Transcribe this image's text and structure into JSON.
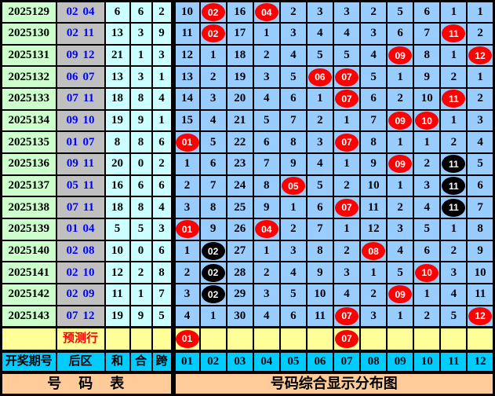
{
  "colors": {
    "period_bg": "#ccffcc",
    "back_bg": "#c0c0c0",
    "back_text": "#0000ff",
    "stat_bg": "#ccffff",
    "grid_bg": "#99ccff",
    "prediction_bg": "#ffff99",
    "prediction_text": "#ff0000",
    "header_bg": "#00ccff",
    "footer_bg": "#ffcc99",
    "circle_red": "#ff0000",
    "circle_black": "#000000",
    "grid_line": "#000000"
  },
  "chart_data": {
    "type": "table",
    "header": {
      "period": "开奖期号",
      "back": "后区",
      "sum": "和",
      "he": "合",
      "span": "跨",
      "numbers": [
        "01",
        "02",
        "03",
        "04",
        "05",
        "06",
        "07",
        "08",
        "09",
        "10",
        "11",
        "12"
      ]
    },
    "rows": [
      {
        "period": "2025129",
        "back": [
          "02",
          "04"
        ],
        "sum": "6",
        "he": "6",
        "span": "2",
        "cells": [
          {
            "v": "10"
          },
          {
            "v": "02",
            "m": "red"
          },
          {
            "v": "16"
          },
          {
            "v": "04",
            "m": "red"
          },
          {
            "v": "2"
          },
          {
            "v": "3"
          },
          {
            "v": "3"
          },
          {
            "v": "2"
          },
          {
            "v": "5"
          },
          {
            "v": "6"
          },
          {
            "v": "1"
          },
          {
            "v": "1"
          }
        ]
      },
      {
        "period": "2025130",
        "back": [
          "02",
          "11"
        ],
        "sum": "13",
        "he": "3",
        "span": "9",
        "cells": [
          {
            "v": "11"
          },
          {
            "v": "02",
            "m": "red"
          },
          {
            "v": "17"
          },
          {
            "v": "1"
          },
          {
            "v": "3"
          },
          {
            "v": "4"
          },
          {
            "v": "4"
          },
          {
            "v": "3"
          },
          {
            "v": "6"
          },
          {
            "v": "7"
          },
          {
            "v": "11",
            "m": "red"
          },
          {
            "v": "2"
          }
        ]
      },
      {
        "period": "2025131",
        "back": [
          "09",
          "12"
        ],
        "sum": "21",
        "he": "1",
        "span": "3",
        "cells": [
          {
            "v": "12"
          },
          {
            "v": "1"
          },
          {
            "v": "18"
          },
          {
            "v": "2"
          },
          {
            "v": "4"
          },
          {
            "v": "5"
          },
          {
            "v": "5"
          },
          {
            "v": "4"
          },
          {
            "v": "09",
            "m": "red"
          },
          {
            "v": "8"
          },
          {
            "v": "1"
          },
          {
            "v": "12",
            "m": "red"
          }
        ]
      },
      {
        "period": "2025132",
        "back": [
          "06",
          "07"
        ],
        "sum": "13",
        "he": "3",
        "span": "1",
        "cells": [
          {
            "v": "13"
          },
          {
            "v": "2"
          },
          {
            "v": "19"
          },
          {
            "v": "3"
          },
          {
            "v": "5"
          },
          {
            "v": "06",
            "m": "red"
          },
          {
            "v": "07",
            "m": "red"
          },
          {
            "v": "5"
          },
          {
            "v": "1"
          },
          {
            "v": "9"
          },
          {
            "v": "2"
          },
          {
            "v": "1"
          }
        ]
      },
      {
        "period": "2025133",
        "back": [
          "07",
          "11"
        ],
        "sum": "18",
        "he": "8",
        "span": "4",
        "cells": [
          {
            "v": "14"
          },
          {
            "v": "3"
          },
          {
            "v": "20"
          },
          {
            "v": "4"
          },
          {
            "v": "6"
          },
          {
            "v": "1"
          },
          {
            "v": "07",
            "m": "red"
          },
          {
            "v": "6"
          },
          {
            "v": "2"
          },
          {
            "v": "10"
          },
          {
            "v": "11",
            "m": "red"
          },
          {
            "v": "2"
          }
        ]
      },
      {
        "period": "2025134",
        "back": [
          "09",
          "10"
        ],
        "sum": "19",
        "he": "9",
        "span": "1",
        "cells": [
          {
            "v": "15"
          },
          {
            "v": "4"
          },
          {
            "v": "21"
          },
          {
            "v": "5"
          },
          {
            "v": "7"
          },
          {
            "v": "2"
          },
          {
            "v": "1"
          },
          {
            "v": "7"
          },
          {
            "v": "09",
            "m": "red"
          },
          {
            "v": "10",
            "m": "red"
          },
          {
            "v": "1"
          },
          {
            "v": "3"
          }
        ]
      },
      {
        "period": "2025135",
        "back": [
          "01",
          "07"
        ],
        "sum": "8",
        "he": "8",
        "span": "6",
        "cells": [
          {
            "v": "01",
            "m": "red"
          },
          {
            "v": "5"
          },
          {
            "v": "22"
          },
          {
            "v": "6"
          },
          {
            "v": "8"
          },
          {
            "v": "3"
          },
          {
            "v": "07",
            "m": "red"
          },
          {
            "v": "8"
          },
          {
            "v": "1"
          },
          {
            "v": "1"
          },
          {
            "v": "2"
          },
          {
            "v": "4"
          }
        ]
      },
      {
        "period": "2025136",
        "back": [
          "09",
          "11"
        ],
        "sum": "20",
        "he": "0",
        "span": "2",
        "cells": [
          {
            "v": "1"
          },
          {
            "v": "6"
          },
          {
            "v": "23"
          },
          {
            "v": "7"
          },
          {
            "v": "9"
          },
          {
            "v": "4"
          },
          {
            "v": "1"
          },
          {
            "v": "9"
          },
          {
            "v": "09",
            "m": "red"
          },
          {
            "v": "2"
          },
          {
            "v": "11",
            "m": "black"
          },
          {
            "v": "5"
          }
        ]
      },
      {
        "period": "2025137",
        "back": [
          "05",
          "11"
        ],
        "sum": "16",
        "he": "6",
        "span": "6",
        "cells": [
          {
            "v": "2"
          },
          {
            "v": "7"
          },
          {
            "v": "24"
          },
          {
            "v": "8"
          },
          {
            "v": "05",
            "m": "red"
          },
          {
            "v": "5"
          },
          {
            "v": "2"
          },
          {
            "v": "10"
          },
          {
            "v": "1"
          },
          {
            "v": "3"
          },
          {
            "v": "11",
            "m": "black"
          },
          {
            "v": "6"
          }
        ]
      },
      {
        "period": "2025138",
        "back": [
          "07",
          "11"
        ],
        "sum": "18",
        "he": "8",
        "span": "4",
        "cells": [
          {
            "v": "3"
          },
          {
            "v": "8"
          },
          {
            "v": "25"
          },
          {
            "v": "9"
          },
          {
            "v": "1"
          },
          {
            "v": "6"
          },
          {
            "v": "07",
            "m": "red"
          },
          {
            "v": "11"
          },
          {
            "v": "2"
          },
          {
            "v": "4"
          },
          {
            "v": "11",
            "m": "black"
          },
          {
            "v": "7"
          }
        ]
      },
      {
        "period": "2025139",
        "back": [
          "01",
          "04"
        ],
        "sum": "5",
        "he": "5",
        "span": "3",
        "cells": [
          {
            "v": "01",
            "m": "red"
          },
          {
            "v": "9"
          },
          {
            "v": "26"
          },
          {
            "v": "04",
            "m": "red"
          },
          {
            "v": "2"
          },
          {
            "v": "7"
          },
          {
            "v": "1"
          },
          {
            "v": "12"
          },
          {
            "v": "3"
          },
          {
            "v": "5"
          },
          {
            "v": "1"
          },
          {
            "v": "8"
          }
        ]
      },
      {
        "period": "2025140",
        "back": [
          "02",
          "08"
        ],
        "sum": "10",
        "he": "0",
        "span": "6",
        "cells": [
          {
            "v": "1"
          },
          {
            "v": "02",
            "m": "black"
          },
          {
            "v": "27"
          },
          {
            "v": "1"
          },
          {
            "v": "3"
          },
          {
            "v": "8"
          },
          {
            "v": "2"
          },
          {
            "v": "08",
            "m": "red"
          },
          {
            "v": "4"
          },
          {
            "v": "6"
          },
          {
            "v": "2"
          },
          {
            "v": "9"
          }
        ]
      },
      {
        "period": "2025141",
        "back": [
          "02",
          "10"
        ],
        "sum": "12",
        "he": "2",
        "span": "8",
        "cells": [
          {
            "v": "2"
          },
          {
            "v": "02",
            "m": "black"
          },
          {
            "v": "28"
          },
          {
            "v": "2"
          },
          {
            "v": "4"
          },
          {
            "v": "9"
          },
          {
            "v": "3"
          },
          {
            "v": "1"
          },
          {
            "v": "5"
          },
          {
            "v": "10",
            "m": "red"
          },
          {
            "v": "3"
          },
          {
            "v": "10"
          }
        ]
      },
      {
        "period": "2025142",
        "back": [
          "02",
          "09"
        ],
        "sum": "11",
        "he": "1",
        "span": "7",
        "cells": [
          {
            "v": "3"
          },
          {
            "v": "02",
            "m": "black"
          },
          {
            "v": "29"
          },
          {
            "v": "3"
          },
          {
            "v": "5"
          },
          {
            "v": "10"
          },
          {
            "v": "4"
          },
          {
            "v": "2"
          },
          {
            "v": "09",
            "m": "red"
          },
          {
            "v": "1"
          },
          {
            "v": "4"
          },
          {
            "v": "11"
          }
        ]
      },
      {
        "period": "2025143",
        "back": [
          "07",
          "12"
        ],
        "sum": "19",
        "he": "9",
        "span": "5",
        "cells": [
          {
            "v": "4"
          },
          {
            "v": "1"
          },
          {
            "v": "30"
          },
          {
            "v": "4"
          },
          {
            "v": "6"
          },
          {
            "v": "11"
          },
          {
            "v": "07",
            "m": "red"
          },
          {
            "v": "3"
          },
          {
            "v": "1"
          },
          {
            "v": "2"
          },
          {
            "v": "5"
          },
          {
            "v": "12",
            "m": "red"
          }
        ]
      }
    ],
    "prediction_row": {
      "label": "预测行",
      "cells": [
        {
          "v": "01",
          "m": "red"
        },
        {
          "v": ""
        },
        {
          "v": ""
        },
        {
          "v": ""
        },
        {
          "v": ""
        },
        {
          "v": ""
        },
        {
          "v": "07",
          "m": "red"
        },
        {
          "v": ""
        },
        {
          "v": ""
        },
        {
          "v": ""
        },
        {
          "v": ""
        },
        {
          "v": ""
        }
      ]
    },
    "footer": {
      "left_title": "号　码　表",
      "right_title": "号码综合显示分布图"
    }
  }
}
